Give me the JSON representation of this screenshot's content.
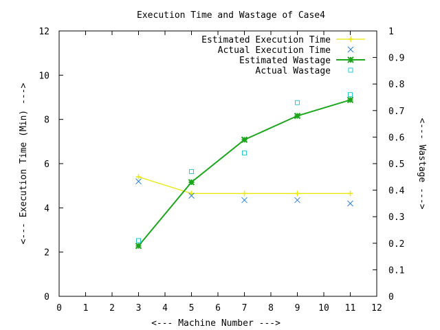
{
  "chart_data": {
    "type": "line",
    "title": "Execution Time and Wastage of Case4",
    "xlabel": "<--- Machine Number --->",
    "ylabel": "<--- Execution Time (Min) --->",
    "y2label": "<--- Wastage --->",
    "xlim": [
      0,
      12
    ],
    "ylim": [
      0,
      12
    ],
    "y2lim": [
      0,
      1
    ],
    "x_ticks": [
      "0",
      "1",
      "2",
      "3",
      "4",
      "5",
      "6",
      "7",
      "8",
      "9",
      "10",
      "11",
      "12"
    ],
    "y_ticks": [
      "0",
      "2",
      "4",
      "6",
      "8",
      "10",
      "12"
    ],
    "y2_ticks": [
      "0",
      "0.1",
      "0.2",
      "0.3",
      "0.4",
      "0.5",
      "0.6",
      "0.7",
      "0.8",
      "0.9",
      "1"
    ],
    "grid": false,
    "legend_position": "top-right",
    "series": [
      {
        "name": "Estimated Execution Time",
        "axis": "left",
        "style": "lines+plus",
        "color": "#e8e800",
        "x": [
          3,
          5,
          7,
          9,
          11
        ],
        "y": [
          5.4,
          4.65,
          4.65,
          4.65,
          4.65
        ]
      },
      {
        "name": "Actual Execution Time",
        "axis": "left",
        "style": "points-x",
        "color": "#2a7fd6",
        "x": [
          3,
          5,
          7,
          9,
          11
        ],
        "y": [
          5.2,
          4.55,
          4.35,
          4.35,
          4.2
        ]
      },
      {
        "name": "Estimated Wastage",
        "axis": "right",
        "style": "lines+star",
        "color": "#1aa51a",
        "x": [
          3,
          5,
          7,
          9,
          11
        ],
        "y": [
          0.19,
          0.43,
          0.59,
          0.68,
          0.74
        ]
      },
      {
        "name": "Actual Wastage",
        "axis": "right",
        "style": "points-square",
        "color": "#22c8d8",
        "x": [
          3,
          5,
          7,
          9,
          11
        ],
        "y": [
          0.21,
          0.47,
          0.54,
          0.73,
          0.76
        ]
      }
    ]
  }
}
